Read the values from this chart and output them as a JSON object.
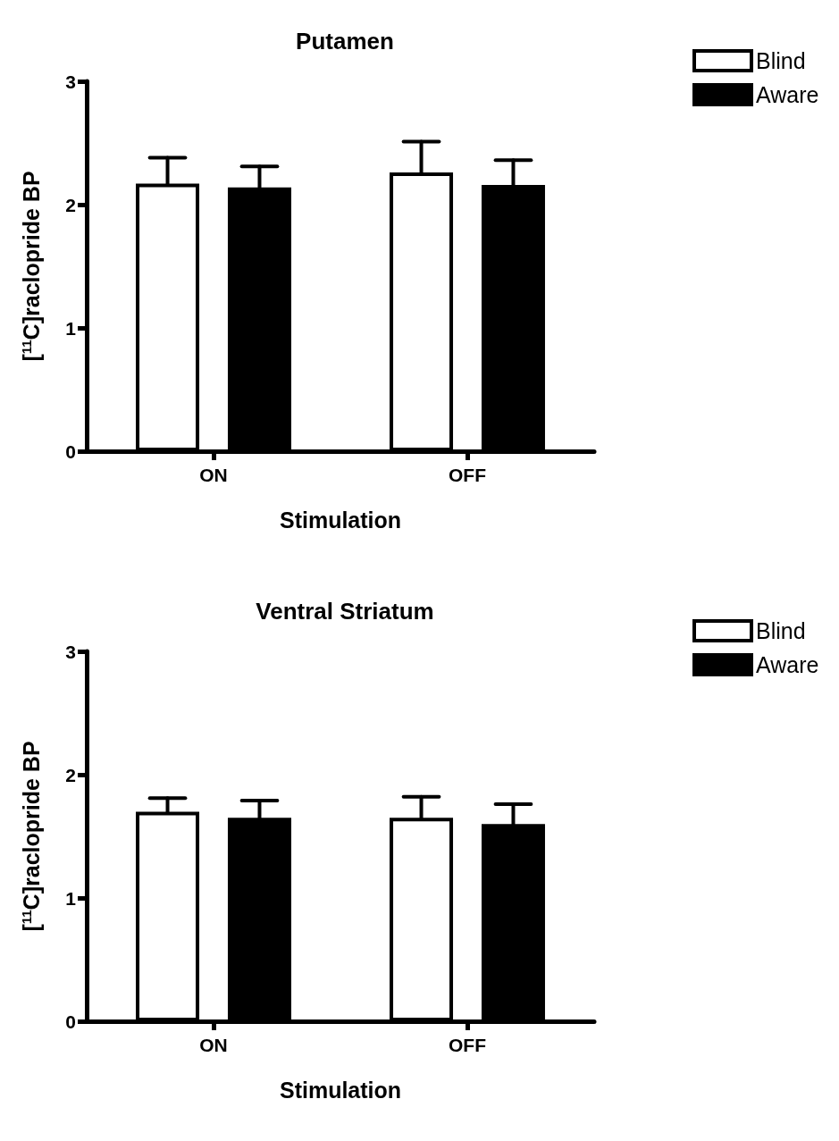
{
  "chart_data": [
    {
      "type": "bar",
      "title": "Putamen",
      "xlabel": "Stimulation",
      "ylabel": "[$^{11}$C]raclopride BP",
      "categories": [
        "ON",
        "OFF"
      ],
      "series": [
        {
          "name": "Blind",
          "color": "#ffffff",
          "values": [
            2.17,
            2.26
          ],
          "errors": [
            [
              2.17,
              2.38
            ],
            [
              2.26,
              2.51
            ]
          ]
        },
        {
          "name": "Aware",
          "color": "#000000",
          "values": [
            2.14,
            2.16
          ],
          "errors": [
            [
              2.14,
              2.31
            ],
            [
              2.16,
              2.36
            ]
          ]
        }
      ],
      "ylim": [
        0,
        3
      ],
      "yticks": [
        0,
        1,
        2,
        3
      ],
      "grid": false,
      "legend": "top right"
    },
    {
      "type": "bar",
      "title": "Ventral Striatum",
      "xlabel": "Stimulation",
      "ylabel": "[$^{11}$C]raclopride BP",
      "categories": [
        "ON",
        "OFF"
      ],
      "series": [
        {
          "name": "Blind",
          "color": "#ffffff",
          "values": [
            1.7,
            1.65
          ],
          "errors": [
            [
              1.7,
              1.81
            ],
            [
              1.65,
              1.82
            ]
          ]
        },
        {
          "name": "Aware",
          "color": "#000000",
          "values": [
            1.65,
            1.6
          ],
          "errors": [
            [
              1.65,
              1.79
            ],
            [
              1.6,
              1.76
            ]
          ]
        }
      ],
      "ylim": [
        0,
        3
      ],
      "yticks": [
        0,
        1,
        2,
        3
      ],
      "grid": false,
      "legend": "top right"
    }
  ]
}
